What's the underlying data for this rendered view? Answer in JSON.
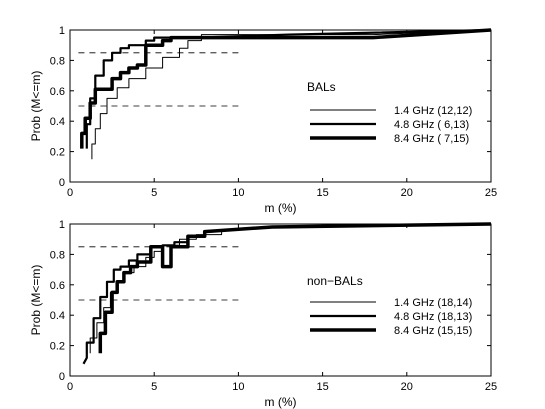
{
  "chart_data": [
    {
      "type": "line",
      "name": "BALs",
      "ylabel": "Prob (M<=m)",
      "xlabel": "m (%)",
      "xlim": [
        0,
        25
      ],
      "ylim": [
        0,
        1
      ],
      "xticks": [
        "0",
        "5",
        "10",
        "15",
        "20",
        "25"
      ],
      "yticks": [
        "0",
        "0.2",
        "0.4",
        "0.6",
        "0.8",
        "1"
      ],
      "annotation": "BALs",
      "grid": false,
      "legend_position": "right",
      "reference_lines": [
        {
          "y": 0.85,
          "x": [
            0.5,
            10
          ]
        },
        {
          "y": 0.5,
          "x": [
            0.5,
            10
          ]
        }
      ],
      "series": [
        {
          "name": "1.4 GHz (12,12)",
          "width": 1,
          "x": [
            1.3,
            1.3,
            1.5,
            1.5,
            1.8,
            1.8,
            2.2,
            2.2,
            2.8,
            2.8,
            3.5,
            3.5,
            4.5,
            4.5,
            5.5,
            5.5,
            6.5,
            6.5,
            7.0,
            7.0,
            7.8,
            7.8,
            18,
            25
          ],
          "y": [
            0.15,
            0.25,
            0.25,
            0.35,
            0.35,
            0.45,
            0.45,
            0.55,
            0.55,
            0.62,
            0.62,
            0.68,
            0.68,
            0.75,
            0.75,
            0.82,
            0.82,
            0.88,
            0.88,
            0.93,
            0.93,
            0.97,
            0.97,
            1.0
          ]
        },
        {
          "name": "4.8 GHz ( 6,13)",
          "width": 2.2,
          "x": [
            1.0,
            1.0,
            1.2,
            1.2,
            1.5,
            1.5,
            2.0,
            2.0,
            2.5,
            2.5,
            3.0,
            3.0,
            3.5,
            3.5,
            4.5,
            4.5,
            5.0,
            5.0,
            7.5,
            13,
            25
          ],
          "y": [
            0.22,
            0.38,
            0.38,
            0.55,
            0.55,
            0.7,
            0.7,
            0.8,
            0.8,
            0.85,
            0.85,
            0.88,
            0.88,
            0.9,
            0.9,
            0.93,
            0.93,
            0.95,
            0.95,
            0.97,
            1.0
          ]
        },
        {
          "name": "8.4 GHz ( 7,15)",
          "width": 3.5,
          "x": [
            0.7,
            0.7,
            0.9,
            0.9,
            1.2,
            1.2,
            1.5,
            1.5,
            2.0,
            2.0,
            2.5,
            2.5,
            3.0,
            3.0,
            3.5,
            3.5,
            4.0,
            4.0,
            4.5,
            4.5,
            5.5,
            5.5,
            6.0,
            6.0,
            18,
            25
          ],
          "y": [
            0.22,
            0.32,
            0.32,
            0.42,
            0.42,
            0.52,
            0.52,
            0.61,
            0.61,
            0.61,
            0.61,
            0.68,
            0.68,
            0.72,
            0.72,
            0.75,
            0.75,
            0.77,
            0.77,
            0.9,
            0.9,
            0.93,
            0.93,
            0.95,
            0.95,
            1.0
          ]
        }
      ]
    },
    {
      "type": "line",
      "name": "non-BALs",
      "ylabel": "Prob (M<=m)",
      "xlabel": "m (%)",
      "xlim": [
        0,
        25
      ],
      "ylim": [
        0,
        1
      ],
      "xticks": [
        "0",
        "5",
        "10",
        "15",
        "20",
        "25"
      ],
      "yticks": [
        "0",
        "0.2",
        "0.4",
        "0.6",
        "0.8",
        "1"
      ],
      "annotation": "non−BALs",
      "grid": false,
      "legend_position": "right",
      "reference_lines": [
        {
          "y": 0.85,
          "x": [
            0.5,
            10
          ]
        },
        {
          "y": 0.5,
          "x": [
            0.5,
            10
          ]
        }
      ],
      "series": [
        {
          "name": "1.4 GHz (18,14)",
          "width": 1,
          "x": [
            1.2,
            1.2,
            1.6,
            1.6,
            2.0,
            2.0,
            2.4,
            2.4,
            2.8,
            2.8,
            3.2,
            3.2,
            3.8,
            3.8,
            4.5,
            4.5,
            5.0,
            5.0,
            5.5,
            5.5,
            6.5,
            6.5,
            7.5,
            7.5,
            9.0,
            9.0,
            12,
            25
          ],
          "y": [
            0.15,
            0.25,
            0.25,
            0.35,
            0.35,
            0.45,
            0.45,
            0.55,
            0.55,
            0.62,
            0.62,
            0.68,
            0.68,
            0.72,
            0.72,
            0.78,
            0.78,
            0.82,
            0.82,
            0.86,
            0.86,
            0.9,
            0.9,
            0.93,
            0.93,
            0.96,
            0.98,
            1.0
          ]
        },
        {
          "name": "4.8 GHz (18,13)",
          "width": 2.2,
          "x": [
            0.8,
            1.0,
            1.0,
            1.4,
            1.4,
            1.8,
            1.8,
            2.2,
            2.2,
            2.6,
            2.6,
            3.0,
            3.0,
            3.5,
            3.5,
            4.0,
            4.0,
            4.8,
            4.8,
            5.5,
            5.5,
            6.2,
            6.2,
            7.0,
            7.0,
            8.0,
            8.0,
            12,
            25
          ],
          "y": [
            0.08,
            0.12,
            0.22,
            0.22,
            0.38,
            0.38,
            0.52,
            0.52,
            0.62,
            0.62,
            0.7,
            0.7,
            0.72,
            0.72,
            0.76,
            0.76,
            0.8,
            0.8,
            0.85,
            0.85,
            0.86,
            0.86,
            0.88,
            0.88,
            0.92,
            0.92,
            0.95,
            0.98,
            1.0
          ]
        },
        {
          "name": "8.4 GHz (15,15)",
          "width": 3.5,
          "x": [
            1.8,
            1.8,
            2.1,
            2.1,
            2.5,
            2.5,
            2.8,
            2.8,
            3.2,
            3.2,
            3.6,
            3.6,
            4.0,
            4.0,
            4.8,
            4.8,
            5.5,
            5.5,
            6.0,
            6.0,
            7.0,
            7.0,
            8.0,
            8.0,
            12,
            25
          ],
          "y": [
            0.15,
            0.28,
            0.28,
            0.42,
            0.42,
            0.55,
            0.55,
            0.62,
            0.62,
            0.68,
            0.68,
            0.72,
            0.72,
            0.75,
            0.75,
            0.85,
            0.85,
            0.72,
            0.72,
            0.85,
            0.85,
            0.92,
            0.92,
            0.95,
            0.98,
            1.0
          ]
        }
      ]
    }
  ]
}
